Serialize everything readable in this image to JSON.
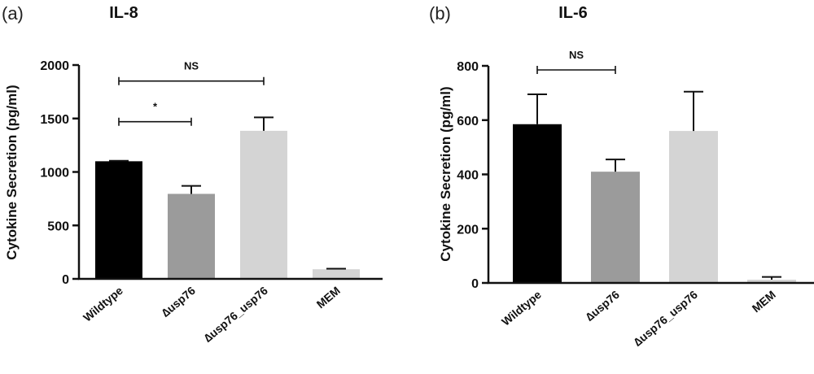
{
  "chart_data": [
    {
      "type": "bar",
      "panel": "(a)",
      "title": "IL-8",
      "ylabel": "Cytokine Secretion (pg/ml)",
      "xlabel": "",
      "categories": [
        "Wildtype",
        "∆usp76",
        "∆usp76_usp76",
        "MEM"
      ],
      "values": [
        1100,
        795,
        1385,
        90
      ],
      "errors": [
        5,
        75,
        125,
        5
      ],
      "colors": [
        "#000000",
        "#9b9b9b",
        "#d4d4d4",
        "#d4d4d4"
      ],
      "ylim": [
        0,
        2000
      ],
      "yticks": [
        "0",
        "500",
        "1000",
        "1500",
        "2000"
      ],
      "grid": false,
      "annotations": [
        {
          "text": "*",
          "from": 0,
          "to": 1,
          "y": 1470
        },
        {
          "text": "NS",
          "from": 0,
          "to": 2,
          "y": 1850
        }
      ]
    },
    {
      "type": "bar",
      "panel": "(b)",
      "title": "IL-6",
      "ylabel": "Cytokine Secretion (pg/ml)",
      "xlabel": "",
      "categories": [
        "Wildtype",
        "∆usp76",
        "∆usp76_usp76",
        "MEM"
      ],
      "values": [
        585,
        410,
        560,
        12
      ],
      "errors": [
        110,
        45,
        145,
        10
      ],
      "colors": [
        "#000000",
        "#9b9b9b",
        "#d4d4d4",
        "#d4d4d4"
      ],
      "ylim": [
        0,
        800
      ],
      "yticks": [
        "0",
        "200",
        "400",
        "600",
        "800"
      ],
      "grid": false,
      "annotations": [
        {
          "text": "NS",
          "from": 0,
          "to": 1,
          "y": 785
        }
      ]
    }
  ]
}
